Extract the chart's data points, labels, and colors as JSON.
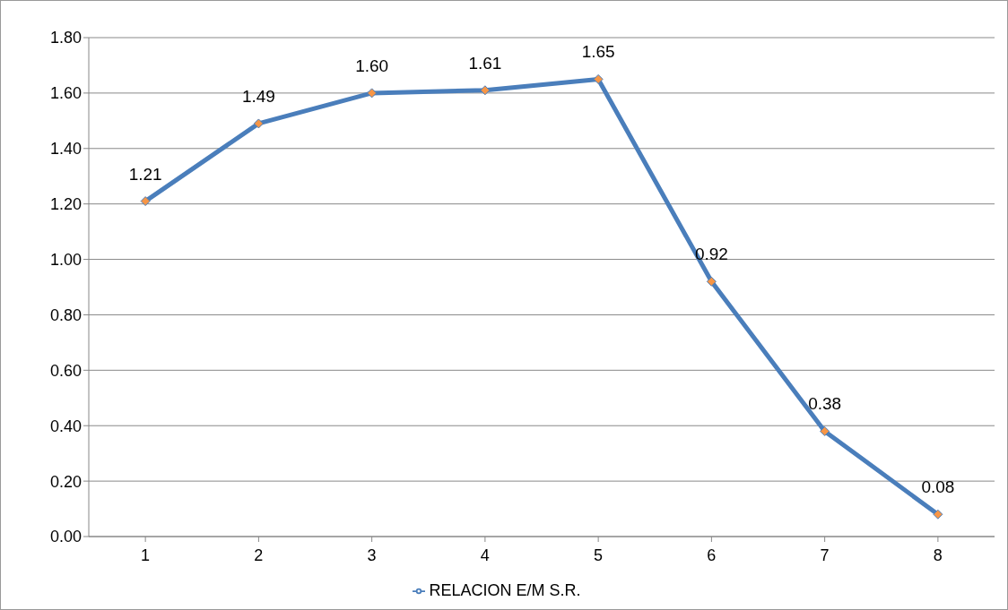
{
  "chart_data": {
    "type": "line",
    "categories": [
      "1",
      "2",
      "3",
      "4",
      "5",
      "6",
      "7",
      "8"
    ],
    "series": [
      {
        "name": "RELACION E/M S.R.",
        "color": "#4a7ebb",
        "colors": [
          "#f79646",
          "#f79646",
          "#f79646",
          "#f79646",
          "#f79646",
          "#f79646",
          "#f79646",
          "#f79646"
        ],
        "values": [
          1.21,
          1.49,
          1.6,
          1.61,
          1.65,
          0.92,
          0.38,
          0.08
        ],
        "value_labels": [
          "1.21",
          "1.49",
          "1.60",
          "1.61",
          "1.65",
          "0.92",
          "0.38",
          "0.08"
        ]
      }
    ],
    "ylim": [
      0,
      1.8
    ],
    "yticks": [
      {
        "value": 0,
        "label": "0.00"
      },
      {
        "value": 0.2,
        "label": "0.20"
      },
      {
        "value": 0.4,
        "label": "0.40"
      },
      {
        "value": 0.6,
        "label": "0.60"
      },
      {
        "value": 0.8,
        "label": "0.80"
      },
      {
        "value": 1,
        "label": "1.00"
      },
      {
        "value": 1.2,
        "label": "1.20"
      },
      {
        "value": 1.4,
        "label": "1.40"
      },
      {
        "value": 1.6,
        "label": "1.60"
      },
      {
        "value": 1.8,
        "label": "1.80"
      }
    ],
    "grid": "y",
    "legend": "bottom",
    "marker": "diamond",
    "line_style": "solid"
  }
}
